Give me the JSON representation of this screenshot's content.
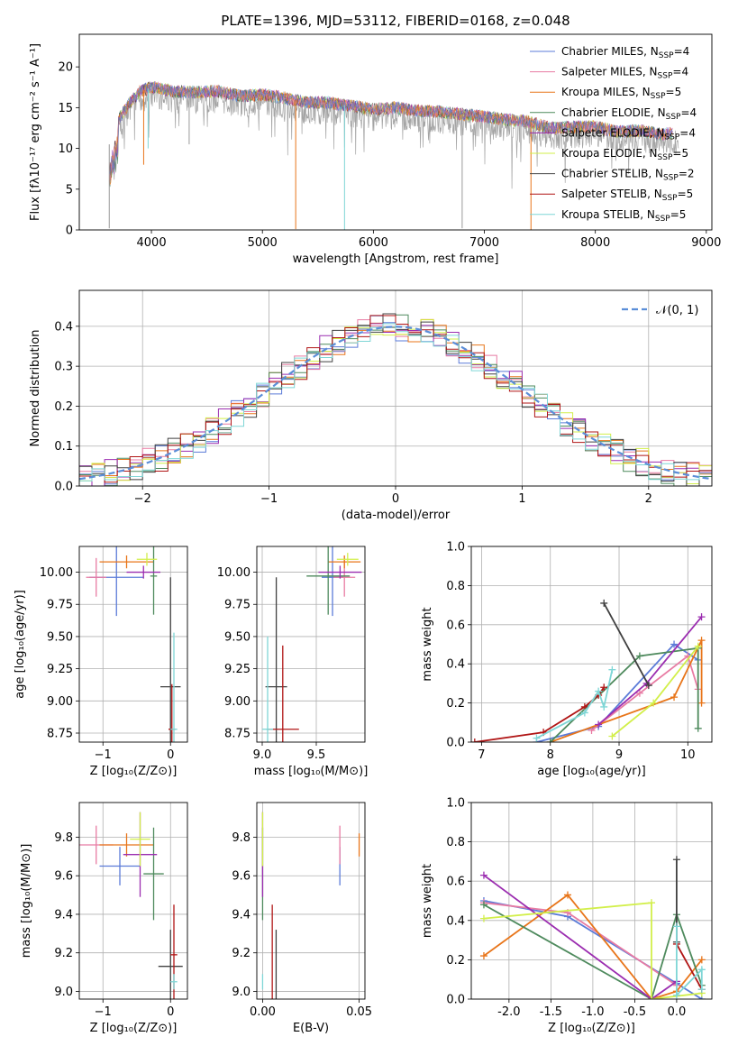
{
  "title": "PLATE=1396, MJD=53112, FIBERID=0168, z=0.048",
  "colors": {
    "Chabrier MILES": "#5b7bd8",
    "Salpeter MILES": "#e87ba3",
    "Kroupa MILES": "#e8751a",
    "Chabrier ELODIE": "#4e8a5d",
    "Salpeter ELODIE": "#9b2db0",
    "Kroupa ELODIE": "#d2ef4a",
    "Chabrier STELIB": "#404040",
    "Salpeter STELIB": "#b01515",
    "Kroupa STELIB": "#7fd6d6",
    "gray": "#9a9a9a",
    "normal": "#5b8ed8"
  },
  "chart_data": [
    {
      "type": "line",
      "name": "spectrum",
      "title": "PLATE=1396, MJD=53112, FIBERID=0168, z=0.048",
      "xlabel": "wavelength [Angstrom, rest frame]",
      "ylabel": "Flux [fλ10⁻¹⁷ erg cm⁻² s⁻¹ A⁻¹]",
      "xlim": [
        3350,
        9050
      ],
      "ylim": [
        0,
        24
      ],
      "xticks": [
        4000,
        5000,
        6000,
        7000,
        8000,
        9000
      ],
      "yticks": [
        0,
        5,
        10,
        15,
        20
      ],
      "grid": false,
      "legend_position": "top-right",
      "legend": [
        {
          "name": "Chabrier MILES",
          "nssp": "4"
        },
        {
          "name": "Salpeter MILES",
          "nssp": "4"
        },
        {
          "name": "Kroupa MILES",
          "nssp": "5"
        },
        {
          "name": "Chabrier ELODIE",
          "nssp": "4"
        },
        {
          "name": "Salpeter ELODIE",
          "nssp": "4"
        },
        {
          "name": "Kroupa ELODIE",
          "nssp": "5"
        },
        {
          "name": "Chabrier STELIB",
          "nssp": "2"
        },
        {
          "name": "Salpeter STELIB",
          "nssp": "5"
        },
        {
          "name": "Kroupa STELIB",
          "nssp": "5"
        }
      ],
      "envelope": {
        "x": [
          3620,
          3700,
          3800,
          3900,
          4000,
          4100,
          4200,
          4400,
          4600,
          4800,
          5000,
          5200,
          5400,
          5600,
          5800,
          6000,
          6200,
          6400,
          6600,
          6800,
          7000,
          7200,
          7400,
          7600,
          7800,
          8000,
          8200,
          8400,
          8600,
          8750
        ],
        "y": [
          12.5,
          15.5,
          17.5,
          19.0,
          19.5,
          19.3,
          19.0,
          18.9,
          19.0,
          18.4,
          18.6,
          18.2,
          17.6,
          17.6,
          17.2,
          16.8,
          17.0,
          16.6,
          16.5,
          16.2,
          15.9,
          15.5,
          15.3,
          14.5,
          14.6,
          14.7,
          14.0,
          14.2,
          13.7,
          14.0
        ]
      },
      "absorption_dips": [
        {
          "x": 3620,
          "y": 0.2
        },
        {
          "x": 3930,
          "y": 8.0
        },
        {
          "x": 3970,
          "y": 10.0
        },
        {
          "x": 4340,
          "y": 10.5
        },
        {
          "x": 5300,
          "y": 0.1
        },
        {
          "x": 5740,
          "y": 0.0
        },
        {
          "x": 6800,
          "y": 0.2
        },
        {
          "x": 7420,
          "y": 0.0
        }
      ]
    },
    {
      "type": "line",
      "name": "residuals",
      "xlabel": "(data-model)/error",
      "ylabel": "Normed distribution",
      "xlim": [
        -2.5,
        2.5
      ],
      "ylim": [
        0,
        0.49
      ],
      "xticks": [
        -2,
        -1,
        0,
        1,
        2
      ],
      "yticks": [
        0.0,
        0.1,
        0.2,
        0.3,
        0.4
      ],
      "grid": true,
      "legend_position": "top-right",
      "normal_label": "𝒩(0, 1)",
      "bin_edges_start": -2.5,
      "bin_width": 0.1
    },
    {
      "type": "scatter",
      "name": "age-vs-Z",
      "xlabel": "Z [log₁₀(Z/Z⊙)]",
      "ylabel": "age  [log₁₀(age/yr)]",
      "xlim": [
        -1.35,
        0.25
      ],
      "ylim": [
        8.68,
        10.2
      ],
      "xticks": [
        -1,
        0
      ],
      "yticks": [
        8.75,
        9.0,
        9.25,
        9.5,
        9.75,
        10.0
      ],
      "grid": true,
      "points": [
        {
          "s": "Chabrier MILES",
          "x": -0.8,
          "y": 9.96,
          "xerr": 0.4,
          "yerr": 0.3
        },
        {
          "s": "Salpeter MILES",
          "x": -1.1,
          "y": 9.96,
          "xerr": 0.15,
          "yerr": 0.15
        },
        {
          "s": "Kroupa MILES",
          "x": -0.65,
          "y": 10.08,
          "xerr": 0.4,
          "yerr": 0.05
        },
        {
          "s": "Chabrier ELODIE",
          "x": -0.25,
          "y": 9.97,
          "xerr": 0.05,
          "yerr": 0.3
        },
        {
          "s": "Salpeter ELODIE",
          "x": -0.4,
          "y": 10.0,
          "xerr": 0.25,
          "yerr": 0.05
        },
        {
          "s": "Kroupa ELODIE",
          "x": -0.35,
          "y": 10.1,
          "xerr": 0.15,
          "yerr": 0.05
        },
        {
          "s": "Chabrier STELIB",
          "x": 0.0,
          "y": 9.11,
          "xerr": 0.15,
          "yerr": 0.85
        },
        {
          "s": "Salpeter STELIB",
          "x": 0.02,
          "y": 8.78,
          "xerr": 0.05,
          "yerr": 0.35
        },
        {
          "s": "Kroupa STELIB",
          "x": 0.05,
          "y": 8.78,
          "xerr": 0.05,
          "yerr": 0.75
        }
      ]
    },
    {
      "type": "scatter",
      "name": "age-vs-mass",
      "xlabel": "mass [log₁₀(M/M⊙)]",
      "ylabel": "",
      "xlim": [
        8.95,
        9.95
      ],
      "ylim": [
        8.68,
        10.2
      ],
      "xticks": [
        9.0,
        9.5
      ],
      "yticks": [
        8.75,
        9.0,
        9.25,
        9.5,
        9.75,
        10.0
      ],
      "grid": true,
      "points": [
        {
          "s": "Chabrier MILES",
          "x": 9.65,
          "y": 9.96,
          "xerr": 0.1,
          "yerr": 0.3
        },
        {
          "s": "Salpeter MILES",
          "x": 9.76,
          "y": 9.96,
          "xerr": 0.1,
          "yerr": 0.15
        },
        {
          "s": "Kroupa MILES",
          "x": 9.76,
          "y": 10.08,
          "xerr": 0.15,
          "yerr": 0.05
        },
        {
          "s": "Chabrier ELODIE",
          "x": 9.61,
          "y": 9.97,
          "xerr": 0.2,
          "yerr": 0.3
        },
        {
          "s": "Salpeter ELODIE",
          "x": 9.72,
          "y": 10.0,
          "xerr": 0.2,
          "yerr": 0.05
        },
        {
          "s": "Kroupa ELODIE",
          "x": 9.79,
          "y": 10.1,
          "xerr": 0.1,
          "yerr": 0.05
        },
        {
          "s": "Chabrier STELIB",
          "x": 9.13,
          "y": 9.11,
          "xerr": 0.1,
          "yerr": 0.85
        },
        {
          "s": "Salpeter STELIB",
          "x": 9.19,
          "y": 8.78,
          "xerr": 0.15,
          "yerr": 0.65
        },
        {
          "s": "Kroupa STELIB",
          "x": 9.05,
          "y": 8.78,
          "xerr": 0.05,
          "yerr": 0.72
        }
      ]
    },
    {
      "type": "line",
      "name": "mass-weight-vs-age",
      "xlabel": "age  [log₁₀(age/yr)]",
      "ylabel": "mass weight",
      "xlim": [
        6.85,
        10.35
      ],
      "ylim": [
        0,
        1.0
      ],
      "xticks": [
        7,
        8,
        9,
        10
      ],
      "yticks": [
        0.0,
        0.2,
        0.4,
        0.6,
        0.8,
        1.0
      ],
      "grid": true,
      "series": [
        {
          "s": "Chabrier MILES",
          "x": [
            7.8,
            8.7,
            9.8,
            10.15
          ],
          "y": [
            0.0,
            0.08,
            0.5,
            0.42
          ]
        },
        {
          "s": "Salpeter MILES",
          "x": [
            8.6,
            9.3,
            10.0,
            10.15
          ],
          "y": [
            0.06,
            0.25,
            0.44,
            0.27
          ]
        },
        {
          "s": "Kroupa MILES",
          "x": [
            8.0,
            9.8,
            10.2,
            10.2
          ],
          "y": [
            0.0,
            0.23,
            0.52,
            0.2
          ]
        },
        {
          "s": "Chabrier ELODIE",
          "x": [
            8.0,
            9.3,
            10.15,
            10.15
          ],
          "y": [
            0.0,
            0.44,
            0.48,
            0.07
          ]
        },
        {
          "s": "Salpeter ELODIE",
          "x": [
            8.7,
            9.4,
            10.2
          ],
          "y": [
            0.09,
            0.3,
            0.64
          ]
        },
        {
          "s": "Kroupa ELODIE",
          "x": [
            8.9,
            9.5,
            10.15
          ],
          "y": [
            0.03,
            0.2,
            0.49
          ]
        },
        {
          "s": "Chabrier STELIB",
          "x": [
            8.78,
            9.43
          ],
          "y": [
            0.71,
            0.29
          ]
        },
        {
          "s": "Salpeter STELIB",
          "x": [
            6.9,
            7.9,
            8.5,
            8.7,
            8.78
          ],
          "y": [
            0.0,
            0.05,
            0.18,
            0.24,
            0.28
          ]
        },
        {
          "s": "Kroupa STELIB",
          "x": [
            7.8,
            8.5,
            8.7,
            8.78,
            8.9
          ],
          "y": [
            0.02,
            0.15,
            0.26,
            0.18,
            0.37
          ]
        }
      ]
    },
    {
      "type": "scatter",
      "name": "mass-vs-Z",
      "xlabel": "Z [log₁₀(Z/Z⊙)]",
      "ylabel": "mass [log₁₀(M/M⊙)]",
      "xlim": [
        -1.35,
        0.25
      ],
      "ylim": [
        8.96,
        9.98
      ],
      "xticks": [
        -1,
        0
      ],
      "yticks": [
        9.0,
        9.2,
        9.4,
        9.6,
        9.8
      ],
      "grid": true,
      "points": [
        {
          "s": "Chabrier MILES",
          "x": -0.75,
          "y": 9.65,
          "xerr": 0.3,
          "yerr": 0.1
        },
        {
          "s": "Salpeter MILES",
          "x": -1.1,
          "y": 9.76,
          "xerr": 0.25,
          "yerr": 0.1
        },
        {
          "s": "Kroupa MILES",
          "x": -0.65,
          "y": 9.76,
          "xerr": 0.4,
          "yerr": 0.06
        },
        {
          "s": "Chabrier ELODIE",
          "x": -0.25,
          "y": 9.61,
          "xerr": 0.15,
          "yerr": 0.24
        },
        {
          "s": "Salpeter ELODIE",
          "x": -0.45,
          "y": 9.71,
          "xerr": 0.25,
          "yerr": 0.22
        },
        {
          "s": "Kroupa ELODIE",
          "x": -0.45,
          "y": 9.79,
          "xerr": 0.15,
          "yerr": 0.14
        },
        {
          "s": "Chabrier STELIB",
          "x": 0.0,
          "y": 9.13,
          "xerr": 0.18,
          "yerr": 0.19
        },
        {
          "s": "Salpeter STELIB",
          "x": 0.05,
          "y": 9.19,
          "xerr": 0.05,
          "yerr": 0.26
        },
        {
          "s": "Kroupa STELIB",
          "x": 0.05,
          "y": 9.05,
          "xerr": 0.05,
          "yerr": 0.04
        }
      ]
    },
    {
      "type": "scatter",
      "name": "mass-vs-EBV",
      "xlabel": "E(B-V)",
      "ylabel": "",
      "xlim": [
        -0.003,
        0.053
      ],
      "ylim": [
        8.96,
        9.98
      ],
      "xticks": [
        0.0,
        0.05
      ],
      "yticks": [
        9.0,
        9.2,
        9.4,
        9.6,
        9.8
      ],
      "grid": true,
      "points": [
        {
          "s": "Chabrier MILES",
          "x": 0.04,
          "y": 9.65,
          "xerr": 0,
          "yerr": 0.1
        },
        {
          "s": "Salpeter MILES",
          "x": 0.04,
          "y": 9.76,
          "xerr": 0,
          "yerr": 0.1
        },
        {
          "s": "Kroupa MILES",
          "x": 0.05,
          "y": 9.76,
          "xerr": 0,
          "yerr": 0.06
        },
        {
          "s": "Chabrier ELODIE",
          "x": 0.0,
          "y": 9.61,
          "xerr": 0,
          "yerr": 0.24
        },
        {
          "s": "Salpeter ELODIE",
          "x": 0.0,
          "y": 9.71,
          "xerr": 0,
          "yerr": 0.22
        },
        {
          "s": "Kroupa ELODIE",
          "x": 0.0,
          "y": 9.79,
          "xerr": 0,
          "yerr": 0.14
        },
        {
          "s": "Chabrier STELIB",
          "x": 0.007,
          "y": 9.13,
          "xerr": 0,
          "yerr": 0.19
        },
        {
          "s": "Salpeter STELIB",
          "x": 0.005,
          "y": 9.19,
          "xerr": 0,
          "yerr": 0.26
        },
        {
          "s": "Kroupa STELIB",
          "x": 0.0,
          "y": 9.05,
          "xerr": 0,
          "yerr": 0.04
        }
      ]
    },
    {
      "type": "line",
      "name": "mass-weight-vs-Z",
      "xlabel": "Z [log₁₀(Z/Z⊙)]",
      "ylabel": "mass weight",
      "xlim": [
        -2.45,
        0.42
      ],
      "ylim": [
        0,
        1.0
      ],
      "xticks": [
        -2.0,
        -1.5,
        -1.0,
        -0.5,
        0.0
      ],
      "yticks": [
        0.0,
        0.2,
        0.4,
        0.6,
        0.8,
        1.0
      ],
      "grid": true,
      "series": [
        {
          "s": "Chabrier MILES",
          "x": [
            -2.3,
            -1.3,
            0.0,
            0.3
          ],
          "y": [
            0.5,
            0.42,
            0.08,
            0.0
          ]
        },
        {
          "s": "Salpeter MILES",
          "x": [
            -2.3,
            -1.3,
            0.0
          ],
          "y": [
            0.49,
            0.44,
            0.07
          ]
        },
        {
          "s": "Kroupa MILES",
          "x": [
            -2.3,
            -1.3,
            -0.3,
            0.0,
            0.3
          ],
          "y": [
            0.22,
            0.53,
            0.0,
            0.04,
            0.2
          ]
        },
        {
          "s": "Chabrier ELODIE",
          "x": [
            -2.3,
            -0.3,
            0.0,
            0.3
          ],
          "y": [
            0.48,
            0.0,
            0.43,
            0.07
          ]
        },
        {
          "s": "Salpeter ELODIE",
          "x": [
            -2.3,
            -0.3,
            0.0
          ],
          "y": [
            0.63,
            0.0,
            0.09
          ]
        },
        {
          "s": "Kroupa ELODIE",
          "x": [
            -2.3,
            -0.3,
            -0.3,
            0.3
          ],
          "y": [
            0.41,
            0.49,
            0.0,
            0.03
          ]
        },
        {
          "s": "Chabrier STELIB",
          "x": [
            0.0,
            0.0
          ],
          "y": [
            0.71,
            0.29
          ]
        },
        {
          "s": "Salpeter STELIB",
          "x": [
            0.0,
            0.3
          ],
          "y": [
            0.28,
            0.05
          ]
        },
        {
          "s": "Kroupa STELIB",
          "x": [
            0.0,
            0.0,
            0.3,
            0.3
          ],
          "y": [
            0.37,
            0.02,
            0.15,
            0.05
          ]
        }
      ]
    }
  ]
}
